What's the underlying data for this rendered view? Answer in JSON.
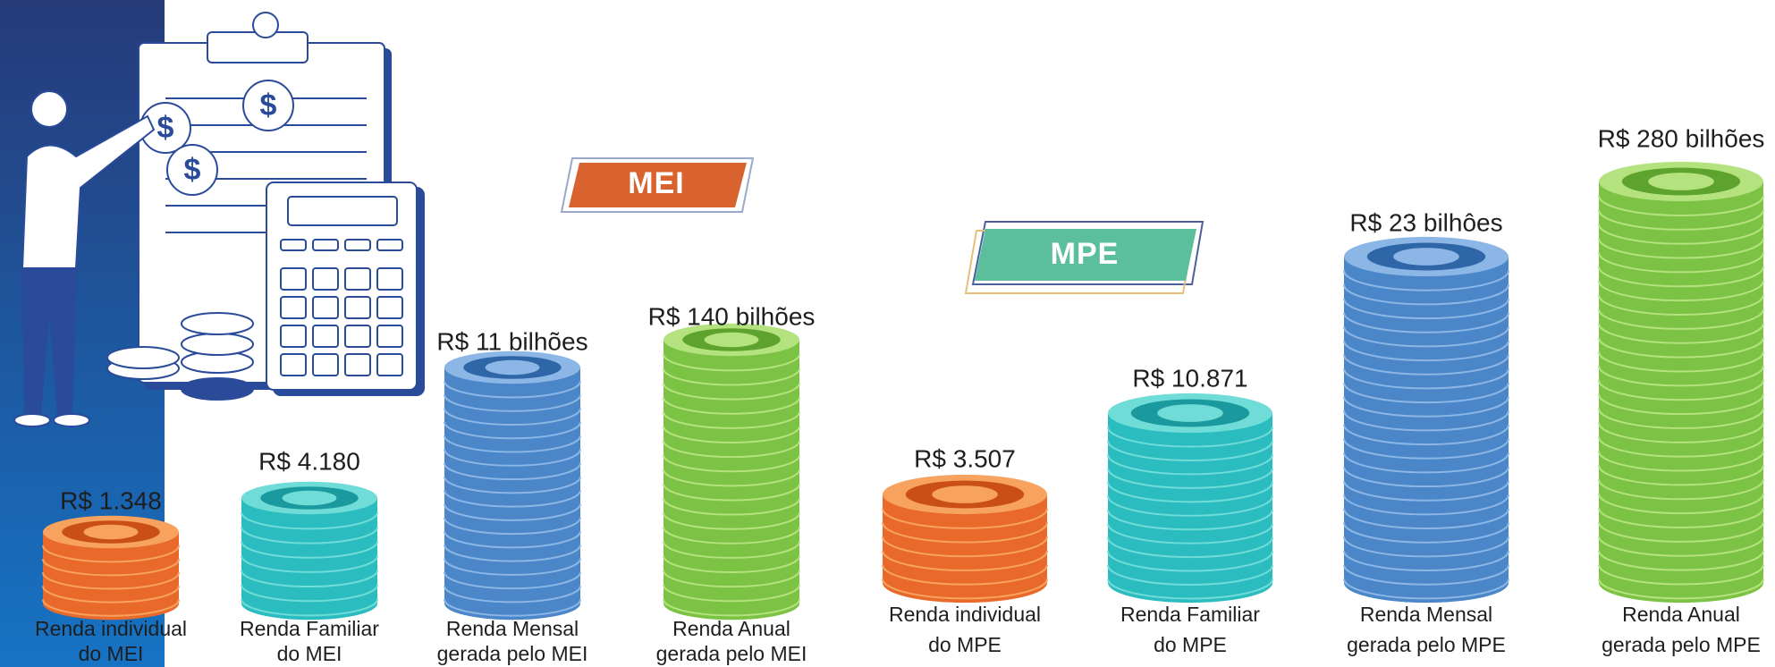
{
  "groups": [
    {
      "badge": "MEI",
      "items": [
        {
          "value": "R$ 1.348",
          "label": [
            "Renda individual",
            "do MEI"
          ]
        },
        {
          "value": "R$ 4.180",
          "label": [
            "Renda Familiar",
            "do MEI"
          ]
        },
        {
          "value": "R$ 11 bilhões",
          "label": [
            "Renda Mensal",
            "gerada pelo MEI"
          ]
        },
        {
          "value": "R$ 140 bilhões",
          "label": [
            "Renda Anual",
            "gerada pelo MEI"
          ]
        }
      ]
    },
    {
      "badge": "MPE",
      "items": [
        {
          "value": "R$ 3.507",
          "label": [
            "Renda individual",
            "do MPE"
          ]
        },
        {
          "value": "R$ 10.871",
          "label": [
            "Renda Familiar",
            "do MPE"
          ]
        },
        {
          "value": "R$ 23 bilhôes",
          "label": [
            "Renda Mensal",
            "gerada pelo MPE"
          ]
        },
        {
          "value": "R$ 280 bilhões",
          "label": [
            "Renda Anual",
            "gerada pelo MPE"
          ]
        }
      ]
    }
  ]
}
